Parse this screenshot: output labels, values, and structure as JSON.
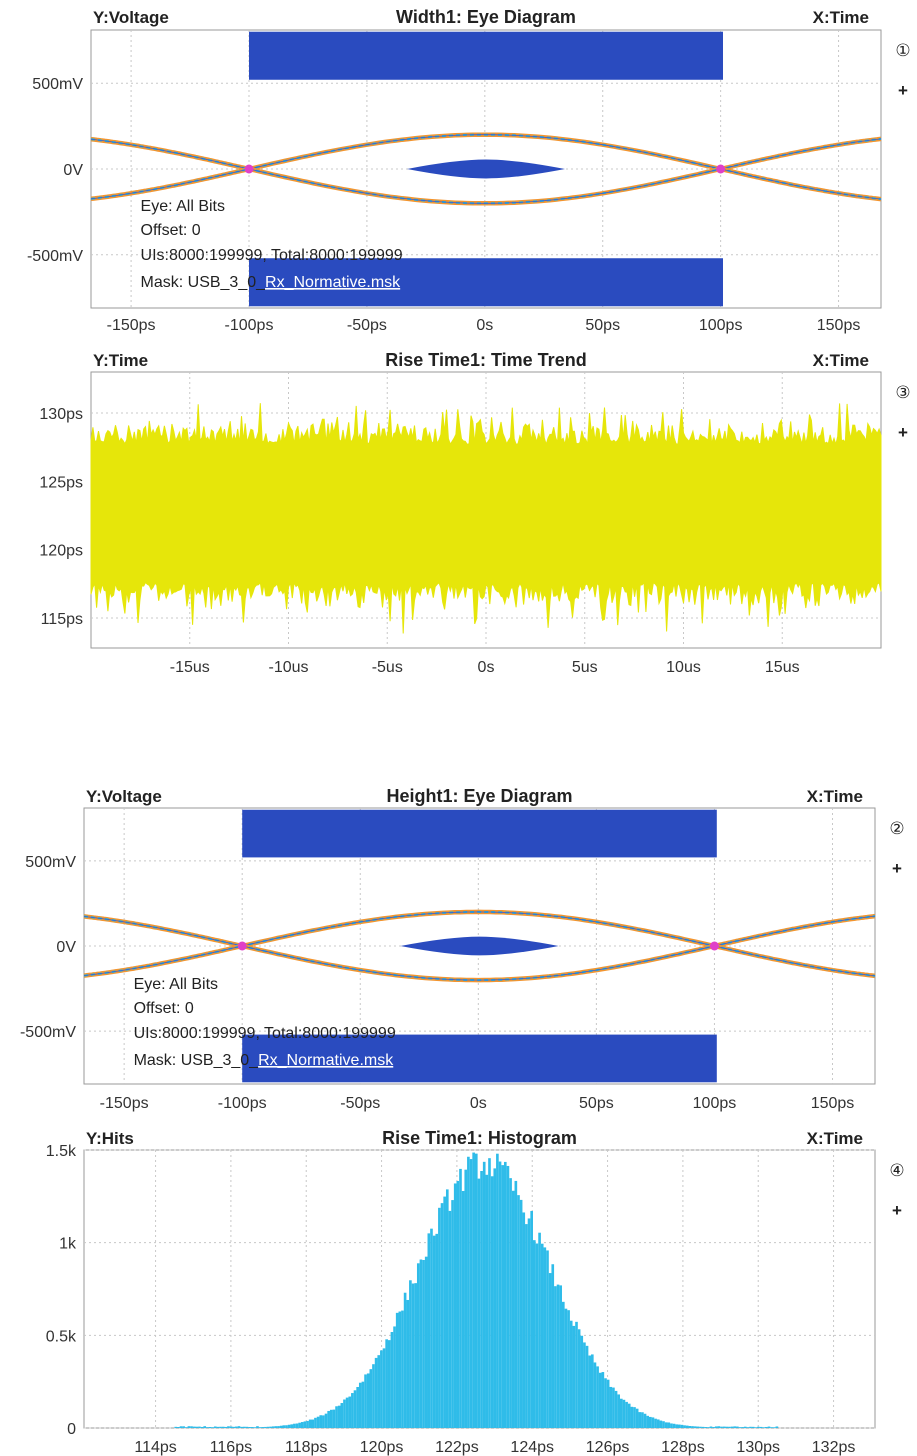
{
  "colors": {
    "mask": "#2a4bbf",
    "trend": "#e6e60a",
    "histogram": "#2fbce9",
    "eye_orange": "#f29530",
    "eye_cyan": "#29b6d8",
    "crossing": "#e040c8",
    "grid": "#c8c8c8",
    "frame": "#9a9a9a"
  },
  "chart_data": [
    {
      "id": "eye1",
      "type": "eye-diagram",
      "y_header": "Voltage",
      "x_header": "Time",
      "title": "Width1: Eye Diagram",
      "panel_index": "①",
      "x_ticks": [
        "-150ps",
        "-100ps",
        "-50ps",
        "0s",
        "50ps",
        "100ps",
        "150ps"
      ],
      "x_tick_values": [
        -150,
        -100,
        -50,
        0,
        50,
        100,
        150
      ],
      "xlim": [
        -167,
        168
      ],
      "y_ticks": [
        "500mV",
        "0V",
        "-500mV"
      ],
      "y_tick_values": [
        500,
        0,
        -500
      ],
      "ylim": [
        -810,
        810
      ],
      "eye_levels_mV": [
        200,
        -200
      ],
      "crossings_ps": [
        -100,
        100
      ],
      "mask_top_mV": [
        520,
        800
      ],
      "mask_bottom_mV": [
        -800,
        -520
      ],
      "mask_x_ps": [
        -100,
        101
      ],
      "center_mask_ps": [
        -33,
        34
      ],
      "center_mask_height_mV": 55,
      "annotations": {
        "eye": "Eye: All Bits",
        "offset": "Offset: 0",
        "uis": "UIs:8000:199999, Total:8000:199999",
        "mask_label": "Mask: USB_3_0_",
        "mask_file": "Rx_Normative.msk"
      }
    },
    {
      "id": "trend",
      "type": "time-trend",
      "y_header": "Time",
      "x_header": "Time",
      "title": "Rise Time1: Time Trend",
      "panel_index": "③",
      "x_ticks": [
        "-15us",
        "-10us",
        "-5us",
        "0s",
        "5us",
        "10us",
        "15us"
      ],
      "x_tick_values": [
        -15,
        -10,
        -5,
        0,
        5,
        10,
        15
      ],
      "xlim": [
        -20,
        20
      ],
      "y_ticks": [
        "130ps",
        "125ps",
        "120ps",
        "115ps"
      ],
      "y_tick_values": [
        130,
        125,
        120,
        115
      ],
      "ylim": [
        112.8,
        133
      ],
      "band_typical_ps": [
        117.6,
        127.7
      ],
      "band_extremes_ps": [
        113.7,
        130.9
      ]
    },
    {
      "id": "eye2",
      "type": "eye-diagram",
      "y_header": "Voltage",
      "x_header": "Time",
      "title": "Height1: Eye Diagram",
      "panel_index": "②",
      "x_ticks": [
        "-150ps",
        "-100ps",
        "-50ps",
        "0s",
        "50ps",
        "100ps",
        "150ps"
      ],
      "x_tick_values": [
        -150,
        -100,
        -50,
        0,
        50,
        100,
        150
      ],
      "xlim": [
        -167,
        168
      ],
      "y_ticks": [
        "500mV",
        "0V",
        "-500mV"
      ],
      "y_tick_values": [
        500,
        0,
        -500
      ],
      "ylim": [
        -810,
        810
      ],
      "eye_levels_mV": [
        200,
        -200
      ],
      "crossings_ps": [
        -100,
        100
      ],
      "mask_top_mV": [
        520,
        800
      ],
      "mask_bottom_mV": [
        -800,
        -520
      ],
      "mask_x_ps": [
        -100,
        101
      ],
      "center_mask_ps": [
        -33,
        34
      ],
      "center_mask_height_mV": 55,
      "annotations": {
        "eye": "Eye: All Bits",
        "offset": "Offset: 0",
        "uis": "UIs:8000:199999, Total:8000:199999",
        "mask_label": "Mask: USB_3_0_",
        "mask_file": "Rx_Normative.msk"
      }
    },
    {
      "id": "hist",
      "type": "histogram",
      "y_header": "Hits",
      "x_header": "Time",
      "title": "Rise Time1: Histogram",
      "panel_index": "④",
      "x_ticks": [
        "114ps",
        "116ps",
        "118ps",
        "120ps",
        "122ps",
        "124ps",
        "126ps",
        "128ps",
        "130ps",
        "132ps"
      ],
      "x_tick_values": [
        114,
        116,
        118,
        120,
        122,
        124,
        126,
        128,
        130,
        132
      ],
      "xlim": [
        112.1,
        133.1
      ],
      "y_ticks": [
        "1.5k",
        "1k",
        "0.5k",
        "0"
      ],
      "y_tick_values": [
        1500,
        1000,
        500,
        0
      ],
      "ylim": [
        0,
        1500
      ],
      "peak_ps": 122.7,
      "peak_hits": 1430,
      "sigma_ps": 1.75,
      "range_ps": [
        114.5,
        130.5
      ]
    }
  ],
  "controls": {
    "plus_label": "+"
  }
}
